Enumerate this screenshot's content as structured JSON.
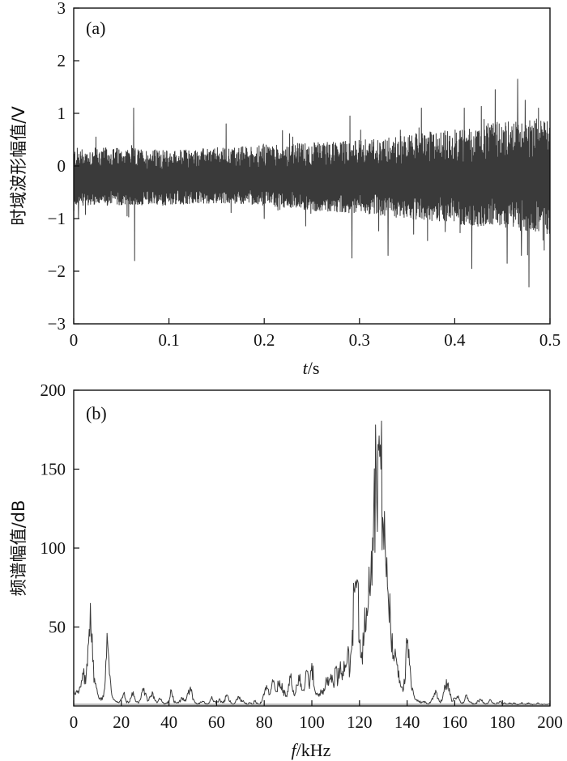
{
  "chart_data": [
    {
      "panel": "(a)",
      "type": "line",
      "xlabel_var": "t",
      "xlabel_unit": "/s",
      "ylabel": "时域波形幅值/V",
      "xlim": [
        0,
        0.5
      ],
      "ylim": [
        -3,
        3
      ],
      "xticks": [
        0,
        0.1,
        0.2,
        0.3,
        0.4,
        0.5
      ],
      "yticks": [
        -3,
        -2,
        -1,
        0,
        1,
        2,
        3
      ],
      "xtick_labels": [
        "0",
        "0.1",
        "0.2",
        "0.3",
        "0.4",
        "0.5"
      ],
      "ytick_labels": [
        "−3",
        "−2",
        "−1",
        "0",
        "1",
        "2",
        "3"
      ],
      "grid": false,
      "series": [
        {
          "color": "#3a3a3a",
          "envelope": {
            "t": [
              0,
              0.05,
              0.1,
              0.15,
              0.2,
              0.25,
              0.3,
              0.35,
              0.4,
              0.45,
              0.5
            ],
            "upper": [
              0.35,
              0.35,
              0.3,
              0.35,
              0.4,
              0.45,
              0.5,
              0.6,
              0.7,
              0.85,
              0.95
            ],
            "lower": [
              -0.75,
              -0.75,
              -0.75,
              -0.7,
              -0.75,
              -0.85,
              -0.9,
              -1.0,
              -1.1,
              -1.2,
              -1.3
            ]
          },
          "mean": -0.3,
          "spikes": [
            {
              "t": 0.005,
              "y": -1.0
            },
            {
              "t": 0.063,
              "y": 1.1
            },
            {
              "t": 0.064,
              "y": -1.8
            },
            {
              "t": 0.056,
              "y": -0.95
            },
            {
              "t": 0.16,
              "y": 0.8
            },
            {
              "t": 0.2,
              "y": -1.0
            },
            {
              "t": 0.23,
              "y": 0.55
            },
            {
              "t": 0.29,
              "y": 0.95
            },
            {
              "t": 0.292,
              "y": -1.75
            },
            {
              "t": 0.33,
              "y": -1.7
            },
            {
              "t": 0.365,
              "y": 1.1
            },
            {
              "t": 0.39,
              "y": -1.25
            },
            {
              "t": 0.41,
              "y": 1.1
            },
            {
              "t": 0.418,
              "y": -1.95
            },
            {
              "t": 0.455,
              "y": -1.85
            },
            {
              "t": 0.466,
              "y": 1.65
            },
            {
              "t": 0.47,
              "y": -1.7
            },
            {
              "t": 0.474,
              "y": 1.25
            },
            {
              "t": 0.478,
              "y": -2.3
            },
            {
              "t": 0.488,
              "y": 1.1
            },
            {
              "t": 0.494,
              "y": -1.6
            }
          ]
        }
      ]
    },
    {
      "panel": "(b)",
      "type": "line",
      "xlabel_var": "f",
      "xlabel_unit": "/kHz",
      "ylabel": "频谱幅值/dB",
      "xlim": [
        0,
        200
      ],
      "ylim": [
        0,
        200
      ],
      "xticks": [
        0,
        20,
        40,
        60,
        80,
        100,
        120,
        140,
        160,
        180,
        200
      ],
      "yticks": [
        50,
        100,
        150,
        200
      ],
      "xtick_labels": [
        "0",
        "20",
        "40",
        "60",
        "80",
        "100",
        "120",
        "140",
        "160",
        "180",
        "200"
      ],
      "ytick_labels": [
        "50",
        "100",
        "150",
        "200"
      ],
      "grid": false,
      "series": [
        {
          "color": "#3a3a3a",
          "x": [
            0,
            1,
            2,
            3,
            4,
            5,
            6,
            7,
            8,
            9,
            10,
            11,
            12,
            13,
            14,
            15,
            16,
            17,
            18,
            19,
            20,
            21,
            22,
            23,
            24,
            25,
            26,
            27,
            28,
            29,
            30,
            31,
            32,
            33,
            34,
            35,
            36,
            37,
            38,
            39,
            40,
            41,
            42,
            43,
            44,
            45,
            46,
            47,
            48,
            49,
            50,
            51,
            52,
            53,
            54,
            55,
            56,
            57,
            58,
            59,
            60,
            61,
            62,
            63,
            64,
            65,
            66,
            67,
            68,
            69,
            70,
            71,
            72,
            73,
            74,
            75,
            76,
            77,
            78,
            79,
            80,
            81,
            82,
            83,
            84,
            85,
            86,
            87,
            88,
            89,
            90,
            91,
            92,
            93,
            94,
            95,
            96,
            97,
            98,
            99,
            100,
            101,
            102,
            103,
            104,
            105,
            106,
            107,
            108,
            109,
            110,
            111,
            112,
            113,
            114,
            115,
            116,
            117,
            118,
            119,
            120,
            121,
            122,
            123,
            124,
            125,
            126,
            127,
            128,
            129,
            130,
            131,
            132,
            133,
            134,
            135,
            136,
            137,
            138,
            139,
            140,
            141,
            142,
            143,
            144,
            145,
            146,
            147,
            148,
            149,
            150,
            151,
            152,
            153,
            154,
            155,
            156,
            157,
            158,
            159,
            160,
            161,
            162,
            163,
            164,
            165,
            166,
            167,
            168,
            169,
            170,
            171,
            172,
            173,
            174,
            175,
            176,
            177,
            178,
            179,
            180,
            181,
            182,
            183,
            184,
            185,
            186,
            187,
            188,
            189,
            190,
            191,
            192,
            193,
            194,
            195,
            196,
            197,
            198,
            199,
            200
          ],
          "values": [
            10,
            9,
            8,
            12,
            20,
            14,
            38,
            65,
            28,
            14,
            8,
            5,
            4,
            11,
            46,
            20,
            7,
            4,
            3,
            2,
            4,
            8,
            3,
            2,
            5,
            9,
            3,
            2,
            4,
            11,
            8,
            3,
            6,
            9,
            4,
            2,
            5,
            3,
            1,
            2,
            3,
            10,
            3,
            2,
            2,
            4,
            5,
            3,
            8,
            12,
            4,
            2,
            1,
            2,
            3,
            2,
            1,
            2,
            6,
            3,
            2,
            4,
            3,
            2,
            6,
            5,
            2,
            1,
            3,
            6,
            4,
            3,
            2,
            1,
            2,
            1,
            3,
            2,
            1,
            3,
            7,
            13,
            7,
            11,
            16,
            9,
            14,
            12,
            10,
            6,
            9,
            18,
            9,
            8,
            13,
            20,
            10,
            12,
            22,
            11,
            27,
            12,
            8,
            6,
            9,
            11,
            18,
            13,
            20,
            14,
            24,
            16,
            28,
            22,
            26,
            34,
            22,
            48,
            72,
            80,
            40,
            34,
            46,
            62,
            88,
            98,
            125,
            152,
            162,
            150,
            115,
            92,
            72,
            54,
            30,
            36,
            26,
            16,
            12,
            14,
            40,
            26,
            10,
            6,
            4,
            3,
            2,
            3,
            2,
            1,
            3,
            6,
            10,
            5,
            2,
            6,
            12,
            14,
            7,
            3,
            5,
            6,
            4,
            2,
            3,
            7,
            3,
            2,
            1,
            2,
            3,
            4,
            2,
            1,
            2,
            4,
            2,
            1,
            2,
            3,
            1,
            2,
            1,
            2,
            1,
            2,
            1,
            1,
            2,
            1,
            1,
            2,
            1,
            1,
            1,
            2,
            1,
            1,
            1,
            1,
            1
          ]
        }
      ]
    }
  ]
}
